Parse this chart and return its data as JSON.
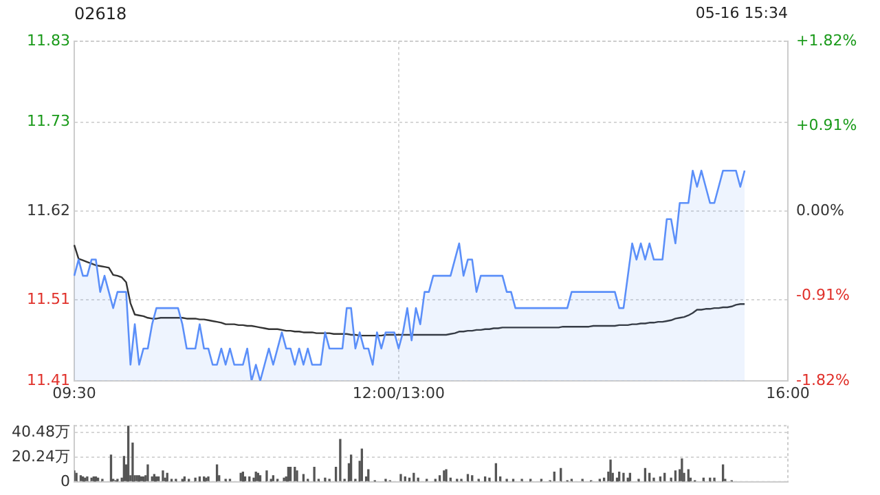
{
  "chart_data": [
    {
      "type": "line",
      "title": "02618",
      "annotations": [
        "05-16 15:34"
      ],
      "categories": [
        "09:30",
        null,
        null,
        null,
        null,
        null,
        null,
        null,
        null,
        null,
        null,
        null,
        null,
        null,
        null,
        null,
        null,
        null,
        null,
        null,
        null,
        null,
        null,
        null,
        null,
        null,
        null,
        null,
        null,
        null,
        null,
        null,
        null,
        null,
        null,
        null,
        null,
        null,
        null,
        null,
        null,
        null,
        null,
        null,
        null,
        null,
        null,
        null,
        null,
        null,
        null,
        null,
        null,
        null,
        null,
        null,
        null,
        null,
        null,
        null,
        null,
        null,
        null,
        null,
        null,
        null,
        null,
        null,
        null,
        null,
        null,
        null,
        null,
        null,
        null,
        "12:00/13:00",
        null,
        null,
        null,
        null,
        null,
        null,
        null,
        null,
        null,
        null,
        null,
        null,
        null,
        null,
        null,
        null,
        null,
        null,
        null,
        null,
        null,
        null,
        null,
        null,
        null,
        null,
        null,
        null,
        null,
        null,
        null,
        null,
        null,
        null,
        null,
        null,
        null,
        null,
        null,
        null,
        null,
        null,
        null,
        null,
        null,
        null,
        null,
        null,
        null,
        null,
        null,
        null,
        null,
        null,
        null,
        null,
        null,
        null,
        null,
        null,
        null,
        null,
        null,
        null,
        null,
        null,
        null,
        null,
        null,
        null,
        null,
        null,
        null,
        null,
        null,
        null,
        null,
        null,
        null,
        null,
        null,
        null,
        null,
        null,
        null,
        null,
        null,
        null,
        null,
        "16:00"
      ],
      "series": [
        {
          "type": "area",
          "color": "#5b8ff9",
          "values": [
            11.54,
            11.56,
            11.54,
            11.54,
            11.56,
            11.56,
            11.52,
            11.54,
            11.52,
            11.5,
            11.52,
            11.52,
            11.52,
            11.43,
            11.48,
            11.43,
            11.45,
            11.45,
            11.48,
            11.5,
            11.5,
            11.5,
            11.5,
            11.5,
            11.5,
            11.48,
            11.45,
            11.45,
            11.45,
            11.48,
            11.45,
            11.45,
            11.43,
            11.43,
            11.45,
            11.43,
            11.45,
            11.43,
            11.43,
            11.43,
            11.45,
            11.41,
            11.43,
            11.41,
            11.43,
            11.45,
            11.43,
            11.45,
            11.47,
            11.45,
            11.45,
            11.43,
            11.45,
            11.43,
            11.45,
            11.43,
            11.43,
            11.43,
            11.47,
            11.45,
            11.45,
            11.45,
            11.45,
            11.5,
            11.5,
            11.45,
            11.47,
            11.45,
            11.45,
            11.43,
            11.47,
            11.45,
            11.47,
            11.47,
            11.47,
            11.45,
            11.47,
            11.5,
            11.46,
            11.5,
            11.48,
            11.52,
            11.52,
            11.54,
            11.54,
            11.54,
            11.54,
            11.54,
            11.56,
            11.58,
            11.54,
            11.56,
            11.56,
            11.52,
            11.54,
            11.54,
            11.54,
            11.54,
            11.54,
            11.54,
            11.52,
            11.52,
            11.5,
            11.5,
            11.5,
            11.5,
            11.5,
            11.5,
            11.5,
            11.5,
            11.5,
            11.5,
            11.5,
            11.5,
            11.5,
            11.52,
            11.52,
            11.52,
            11.52,
            11.52,
            11.52,
            11.52,
            11.52,
            11.52,
            11.52,
            11.52,
            11.5,
            11.5,
            11.54,
            11.58,
            11.56,
            11.58,
            11.56,
            11.58,
            11.56,
            11.56,
            11.56,
            11.61,
            11.61,
            11.58,
            11.63,
            11.63,
            11.63,
            11.67,
            11.65,
            11.67,
            11.65,
            11.63,
            11.63,
            11.65,
            11.67,
            11.67,
            11.67,
            11.67,
            11.65,
            11.67,
            null,
            null,
            null,
            null,
            null,
            null,
            null,
            null,
            null,
            null
          ]
        },
        {
          "color": "#333333",
          "values": [
            11.578,
            11.561,
            11.559,
            11.557,
            11.555,
            11.553,
            11.552,
            11.551,
            11.55,
            11.541,
            11.54,
            11.538,
            11.532,
            11.506,
            11.492,
            11.491,
            11.49,
            11.488,
            11.487,
            11.487,
            11.488,
            11.488,
            11.488,
            11.488,
            11.488,
            11.488,
            11.487,
            11.487,
            11.487,
            11.486,
            11.486,
            11.485,
            11.484,
            11.483,
            11.482,
            11.48,
            11.48,
            11.48,
            11.479,
            11.479,
            11.478,
            11.478,
            11.477,
            11.476,
            11.475,
            11.474,
            11.474,
            11.474,
            11.473,
            11.472,
            11.472,
            11.471,
            11.471,
            11.47,
            11.47,
            11.47,
            11.469,
            11.469,
            11.469,
            11.469,
            11.468,
            11.468,
            11.468,
            11.468,
            11.467,
            11.467,
            11.466,
            11.466,
            11.466,
            11.466,
            11.466,
            11.466,
            11.467,
            11.467,
            11.467,
            11.467,
            11.467,
            11.467,
            11.467,
            11.467,
            11.467,
            11.467,
            11.467,
            11.467,
            11.467,
            11.467,
            11.467,
            11.468,
            11.469,
            11.471,
            11.471,
            11.472,
            11.472,
            11.473,
            11.473,
            11.474,
            11.474,
            11.475,
            11.475,
            11.476,
            11.476,
            11.476,
            11.476,
            11.476,
            11.476,
            11.476,
            11.476,
            11.476,
            11.476,
            11.476,
            11.476,
            11.476,
            11.476,
            11.477,
            11.477,
            11.477,
            11.477,
            11.477,
            11.477,
            11.477,
            11.478,
            11.478,
            11.478,
            11.478,
            11.478,
            11.478,
            11.479,
            11.479,
            11.479,
            11.48,
            11.48,
            11.481,
            11.481,
            11.482,
            11.482,
            11.483,
            11.483,
            11.484,
            11.485,
            11.487,
            11.488,
            11.489,
            11.491,
            11.494,
            11.498,
            11.498,
            11.499,
            11.499,
            11.5,
            11.5,
            11.501,
            11.501,
            11.502,
            11.504,
            11.505,
            11.505,
            null,
            null,
            null,
            null,
            null,
            null,
            null,
            null,
            null,
            null
          ]
        }
      ],
      "ylim": [
        11.41,
        11.83
      ],
      "yticks": [
        11.41,
        11.51,
        11.62,
        11.73,
        11.83
      ],
      "y2lim": [
        -1.82,
        1.82
      ],
      "y2ticks": [
        {
          "value": -1.82,
          "label": "-1.82%"
        },
        {
          "value": -0.91,
          "label": "-0.91%"
        },
        {
          "value": 0,
          "label": "0.00%"
        },
        {
          "value": 0.91,
          "label": "+0.91%"
        },
        {
          "value": 1.82,
          "label": "+1.82%"
        }
      ],
      "grid": true,
      "legend": false
    },
    {
      "type": "bar",
      "color": "#555555",
      "categories": [
        null,
        null,
        null,
        null,
        null,
        null,
        null,
        null,
        null,
        null,
        null,
        null,
        null,
        null,
        null,
        null,
        null,
        null,
        null,
        null,
        null,
        null,
        null,
        null,
        null,
        null,
        null,
        null,
        null,
        null,
        null,
        null,
        null,
        null,
        null,
        null,
        null,
        null,
        null,
        null,
        null,
        null,
        null,
        null,
        null,
        null,
        null,
        null,
        null,
        null,
        null,
        null,
        null,
        null,
        null,
        null,
        null,
        null,
        null,
        null,
        null,
        null,
        null,
        null,
        null,
        null,
        null,
        null,
        null,
        null,
        null,
        null,
        null,
        null,
        null,
        null,
        null,
        null,
        null,
        null,
        null,
        null,
        null,
        null,
        null,
        null,
        null,
        null,
        null,
        null,
        null,
        null,
        null,
        null,
        null,
        null,
        null,
        null,
        null,
        null,
        null,
        null,
        null,
        null,
        null,
        null,
        null,
        null,
        null,
        null,
        null,
        null,
        null,
        null,
        null,
        null,
        null,
        null,
        null,
        null,
        null,
        null,
        null,
        null,
        null,
        null,
        null,
        null,
        null,
        null,
        null,
        null,
        null,
        null,
        null,
        null,
        null,
        null,
        null,
        null,
        null,
        null,
        null,
        null,
        null,
        null,
        null,
        null,
        null,
        null,
        null,
        null,
        null,
        null,
        null,
        null,
        null,
        null,
        null,
        null,
        null,
        null,
        null,
        null,
        null,
        null,
        null,
        null,
        null,
        null,
        null,
        null,
        null,
        null,
        null,
        null,
        null,
        null,
        null,
        null,
        null,
        null,
        null,
        null,
        null,
        null,
        null,
        null,
        null,
        null,
        null,
        null,
        null,
        null,
        null,
        null,
        null,
        null,
        null,
        null,
        null,
        null,
        null,
        null,
        null,
        null,
        null,
        null,
        null,
        null,
        null,
        null,
        null,
        null,
        null,
        null,
        null,
        null,
        null,
        null,
        null,
        null,
        null,
        null,
        null,
        null,
        null,
        null,
        null,
        null,
        null,
        null,
        null,
        null,
        null,
        null,
        null,
        null,
        null,
        null,
        null,
        null,
        null,
        null,
        null,
        null,
        null,
        null,
        null,
        null,
        null,
        null,
        null,
        null,
        null,
        null,
        null,
        null,
        null,
        null,
        null,
        null,
        null,
        null,
        null,
        null,
        null,
        null,
        null,
        null,
        null,
        null,
        null,
        null,
        null,
        null,
        null,
        null,
        null,
        null,
        null,
        null,
        null,
        null,
        null,
        null,
        null,
        null,
        null,
        null,
        null,
        null,
        null,
        null,
        null,
        null,
        null,
        null,
        null,
        null,
        null,
        null,
        null,
        null,
        null,
        null,
        null,
        null,
        null,
        null,
        null,
        null,
        null,
        null,
        null,
        null,
        null,
        null,
        null,
        null,
        null,
        null,
        null,
        null,
        null,
        null,
        null,
        null,
        null,
        null,
        null
      ],
      "values": [
        9,
        7,
        null,
        5,
        4,
        3,
        4,
        null,
        3,
        4,
        4,
        3,
        null,
        2,
        null,
        null,
        null,
        22,
        2,
        1,
        2,
        null,
        3,
        21,
        14,
        46,
        5,
        32,
        5,
        5,
        5,
        4,
        4,
        5,
        14,
        null,
        4,
        6,
        4,
        4,
        null,
        9,
        3,
        7,
        null,
        2,
        null,
        2,
        null,
        null,
        2,
        4,
        null,
        2,
        null,
        null,
        3,
        null,
        4,
        null,
        4,
        3,
        4,
        null,
        null,
        null,
        14,
        5,
        null,
        null,
        2,
        null,
        2,
        null,
        null,
        null,
        null,
        7,
        8,
        4,
        null,
        4,
        null,
        3,
        8,
        7,
        5,
        null,
        null,
        9,
        null,
        2,
        5,
        null,
        2,
        null,
        null,
        3,
        4,
        12,
        12,
        null,
        12,
        9,
        null,
        null,
        6,
        null,
        2,
        null,
        null,
        12,
        null,
        2,
        null,
        null,
        3,
        null,
        2,
        null,
        null,
        12,
        null,
        35,
        null,
        2,
        null,
        15,
        22,
        null,
        2,
        null,
        17,
        27,
        null,
        4,
        10,
        null,
        null,
        1,
        null,
        null,
        null,
        null,
        2,
        null,
        1,
        null,
        null,
        null,
        null,
        6,
        null,
        4,
        null,
        3,
        null,
        7,
        null,
        3,
        null,
        null,
        null,
        2,
        null,
        null,
        null,
        2,
        null,
        5,
        null,
        9,
        10,
        null,
        3,
        null,
        null,
        2,
        null,
        2,
        null,
        null,
        6,
        null,
        5,
        null,
        null,
        2,
        null,
        null,
        4,
        null,
        3,
        null,
        null,
        15,
        null,
        4,
        null,
        null,
        2,
        null,
        null,
        2,
        null,
        null,
        null,
        2,
        null,
        null,
        null,
        2,
        null,
        null,
        null,
        null,
        2,
        null,
        null,
        null,
        1,
        null,
        8,
        null,
        null,
        11,
        null,
        null,
        1,
        null,
        2,
        null,
        null,
        null,
        null,
        2,
        null,
        null,
        null,
        1,
        null,
        null,
        null,
        2,
        null,
        3,
        null,
        8,
        18,
        7,
        null,
        3,
        8,
        null,
        7,
        null,
        3,
        7,
        null,
        null,
        null,
        2,
        null,
        null,
        11,
        null,
        7,
        null,
        3,
        null,
        null,
        4,
        null,
        7,
        null,
        null,
        3,
        null,
        9,
        null,
        10,
        19,
        7,
        null,
        10,
        3,
        null,
        1,
        null,
        null,
        null,
        3,
        null,
        null,
        3,
        null,
        3,
        null,
        null,
        null,
        14,
        2,
        null,
        null,
        1,
        null,
        null,
        null,
        null,
        null,
        null,
        null,
        null,
        null,
        null,
        null,
        null,
        null,
        null,
        null,
        null,
        null,
        null,
        null,
        null,
        null,
        null,
        null,
        null,
        null,
        null
      ],
      "ylim": [
        0,
        46.3
      ],
      "yticks": [
        0,
        {
          "value": 20.24,
          "label": "20.24万"
        },
        {
          "value": 40.48,
          "label": "40.48万"
        }
      ],
      "tick_labels": "y",
      "grid": "y",
      "legend": false
    }
  ]
}
